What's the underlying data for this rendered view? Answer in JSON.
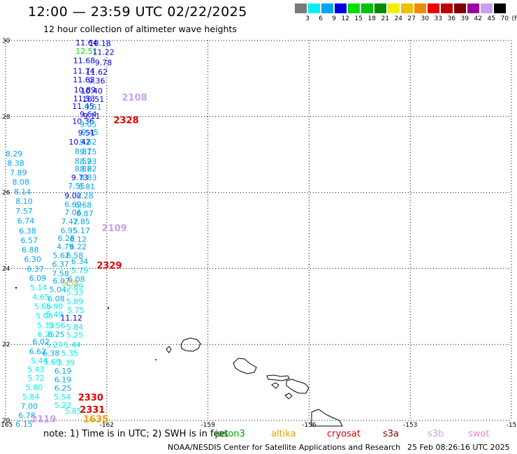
{
  "title": "12:00 — 23:59 UTC 02/22/2025",
  "subtitle": "12 hour collection of altimeter wave heights",
  "legend": {
    "unit": "(ft)",
    "bins": [
      {
        "label": "3",
        "color": "#7a7a7a"
      },
      {
        "label": "6",
        "color": "#00f0f0"
      },
      {
        "label": "9",
        "color": "#00a8f0"
      },
      {
        "label": "12",
        "color": "#0000e6"
      },
      {
        "label": "15",
        "color": "#00e000"
      },
      {
        "label": "18",
        "color": "#00c000"
      },
      {
        "label": "21",
        "color": "#008c00"
      },
      {
        "label": "24",
        "color": "#f0f000"
      },
      {
        "label": "27",
        "color": "#f0c000"
      },
      {
        "label": "30",
        "color": "#f08c00"
      },
      {
        "label": "33",
        "color": "#f00000"
      },
      {
        "label": "36",
        "color": "#c00000"
      },
      {
        "label": "39",
        "color": "#800000"
      },
      {
        "label": "42",
        "color": "#a000a0"
      },
      {
        "label": "45",
        "color": "#c8a0f0"
      },
      {
        "label": "70",
        "color": "#000000"
      }
    ]
  },
  "axes": {
    "lat_labels": [
      "30",
      "28",
      "26",
      "24",
      "22",
      "20"
    ],
    "lon_labels": [
      "-165",
      "-162",
      "-159",
      "-156",
      "-153",
      "-15"
    ]
  },
  "passes": [
    {
      "label": "2108",
      "color": "#c8a0f0",
      "lon": -161.55,
      "lat": 28.42
    },
    {
      "label": "2328",
      "color": "#e00000",
      "lon": -161.8,
      "lat": 27.82
    },
    {
      "label": "2109",
      "color": "#c8a0f0",
      "lon": -162.15,
      "lat": 24.98
    },
    {
      "label": "2329",
      "color": "#e00000",
      "lon": -162.3,
      "lat": 24.0
    },
    {
      "label": "2330",
      "color": "#e00000",
      "lon": -162.85,
      "lat": 20.52
    },
    {
      "label": "2331",
      "color": "#e00000",
      "lon": -162.8,
      "lat": 20.2
    },
    {
      "label": "1635",
      "color": "#f0a000",
      "lon": -162.7,
      "lat": 19.95
    },
    {
      "label": "2119",
      "color": "#c8a0f0",
      "lon": -164.25,
      "lat": 19.95
    }
  ],
  "wave_heights": [
    {
      "v": "11.64",
      "c": "#0000e6",
      "lon": -162.6,
      "lat": 29.87
    },
    {
      "v": "10.18",
      "c": "#0000e6",
      "lon": -162.2,
      "lat": 29.85
    },
    {
      "v": "12.51",
      "c": "#00e000",
      "lon": -162.6,
      "lat": 29.65
    },
    {
      "v": "11.22",
      "c": "#0000e6",
      "lon": -162.1,
      "lat": 29.62
    },
    {
      "v": "11.68",
      "c": "#0000e6",
      "lon": -162.67,
      "lat": 29.4
    },
    {
      "v": "9.78",
      "c": "#0000e6",
      "lon": -162.1,
      "lat": 29.35
    },
    {
      "v": "11.74",
      "c": "#0000e6",
      "lon": -162.68,
      "lat": 29.13
    },
    {
      "v": "11.62",
      "c": "#0000e6",
      "lon": -162.3,
      "lat": 29.1
    },
    {
      "v": "11.63",
      "c": "#0000e6",
      "lon": -162.68,
      "lat": 28.9
    },
    {
      "v": "9.36",
      "c": "#0000e6",
      "lon": -162.3,
      "lat": 28.87
    },
    {
      "v": "10.89",
      "c": "#0000e6",
      "lon": -162.65,
      "lat": 28.63
    },
    {
      "v": "10.40",
      "c": "#0000e6",
      "lon": -162.45,
      "lat": 28.6
    },
    {
      "v": "11.53",
      "c": "#0000e6",
      "lon": -162.67,
      "lat": 28.4
    },
    {
      "v": "10.51",
      "c": "#0000e6",
      "lon": -162.4,
      "lat": 28.38
    },
    {
      "v": "11.45",
      "c": "#0000e6",
      "lon": -162.7,
      "lat": 28.2
    },
    {
      "v": "9.51",
      "c": "#00a8f0",
      "lon": -162.4,
      "lat": 28.18
    },
    {
      "v": "9.64",
      "c": "#0000e6",
      "lon": -162.55,
      "lat": 27.99
    },
    {
      "v": "9.11",
      "c": "#0000e6",
      "lon": -162.45,
      "lat": 27.94
    },
    {
      "v": "10.36",
      "c": "#0000e6",
      "lon": -162.7,
      "lat": 27.8
    },
    {
      "v": "9.05",
      "c": "#00a8f0",
      "lon": -162.55,
      "lat": 27.72
    },
    {
      "v": "9.45",
      "c": "#00a8f0",
      "lon": -162.5,
      "lat": 27.52
    },
    {
      "v": "9.51",
      "c": "#0000e6",
      "lon": -162.6,
      "lat": 27.5
    },
    {
      "v": "10.42",
      "c": "#0000e6",
      "lon": -162.8,
      "lat": 27.26
    },
    {
      "v": "9.62",
      "c": "#00a8f0",
      "lon": -162.55,
      "lat": 27.26
    },
    {
      "v": "8.87",
      "c": "#00a8f0",
      "lon": -162.7,
      "lat": 27.01
    },
    {
      "v": "9.15",
      "c": "#00a8f0",
      "lon": -162.55,
      "lat": 27.0
    },
    {
      "v": "8.52",
      "c": "#00a8f0",
      "lon": -162.7,
      "lat": 26.76
    },
    {
      "v": "8.93",
      "c": "#00a8f0",
      "lon": -162.55,
      "lat": 26.75
    },
    {
      "v": "8.82",
      "c": "#00a8f0",
      "lon": -162.7,
      "lat": 26.55
    },
    {
      "v": "8.62",
      "c": "#00a8f0",
      "lon": -162.55,
      "lat": 26.55
    },
    {
      "v": "9.73",
      "c": "#0000e6",
      "lon": -162.8,
      "lat": 26.32
    },
    {
      "v": "8.83",
      "c": "#00a8f0",
      "lon": -162.55,
      "lat": 26.32
    },
    {
      "v": "7.55",
      "c": "#00a8f0",
      "lon": -162.9,
      "lat": 26.1
    },
    {
      "v": "8.81",
      "c": "#00a8f0",
      "lon": -162.6,
      "lat": 26.08
    },
    {
      "v": "9.02",
      "c": "#0000e6",
      "lon": -163.0,
      "lat": 25.85
    },
    {
      "v": "6.28",
      "c": "#00a8f0",
      "lon": -162.65,
      "lat": 25.85
    },
    {
      "v": "6.69",
      "c": "#00a8f0",
      "lon": -163.0,
      "lat": 25.62
    },
    {
      "v": "6.68",
      "c": "#00a8f0",
      "lon": -162.7,
      "lat": 25.6
    },
    {
      "v": "7.06",
      "c": "#00a8f0",
      "lon": -163.0,
      "lat": 25.4
    },
    {
      "v": "6.87",
      "c": "#00a8f0",
      "lon": -162.65,
      "lat": 25.38
    },
    {
      "v": "7.42",
      "c": "#00a8f0",
      "lon": -163.1,
      "lat": 25.17
    },
    {
      "v": "7.85",
      "c": "#00a8f0",
      "lon": -162.75,
      "lat": 25.17
    },
    {
      "v": "6.95",
      "c": "#00a8f0",
      "lon": -163.12,
      "lat": 24.93
    },
    {
      "v": "5.17",
      "c": "#00a8f0",
      "lon": -162.75,
      "lat": 24.93
    },
    {
      "v": "6.28",
      "c": "#00a8f0",
      "lon": -163.2,
      "lat": 24.72
    },
    {
      "v": "6.12",
      "c": "#00a8f0",
      "lon": -162.85,
      "lat": 24.7
    },
    {
      "v": "4.79",
      "c": "#00a8f0",
      "lon": -163.23,
      "lat": 24.5
    },
    {
      "v": "6.22",
      "c": "#00a8f0",
      "lon": -162.85,
      "lat": 24.5
    },
    {
      "v": "5.62",
      "c": "#00a8f0",
      "lon": -163.35,
      "lat": 24.27
    },
    {
      "v": "6.58",
      "c": "#00a8f0",
      "lon": -162.95,
      "lat": 24.27
    },
    {
      "v": "6.34",
      "c": "#00a8f0",
      "lon": -162.8,
      "lat": 24.12
    },
    {
      "v": "6.37",
      "c": "#00a8f0",
      "lon": -163.37,
      "lat": 24.04
    },
    {
      "v": "5.79",
      "c": "#00f0f0",
      "lon": -162.8,
      "lat": 23.88
    },
    {
      "v": "7.58",
      "c": "#00a8f0",
      "lon": -163.37,
      "lat": 23.8
    },
    {
      "v": "6.08",
      "c": "#00a8f0",
      "lon": -162.9,
      "lat": 23.65
    },
    {
      "v": "6.07",
      "c": "#00a8f0",
      "lon": -163.35,
      "lat": 23.6
    },
    {
      "v": "5.55",
      "c": "#f0a000",
      "lon": -163.08,
      "lat": 23.55
    },
    {
      "v": "5.89",
      "c": "#00f0f0",
      "lon": -162.95,
      "lat": 23.46
    },
    {
      "v": "5.04",
      "c": "#00a8f0",
      "lon": -163.45,
      "lat": 23.37
    },
    {
      "v": "5.33",
      "c": "#00f0f0",
      "lon": -162.95,
      "lat": 23.3
    },
    {
      "v": "6.08",
      "c": "#00a8f0",
      "lon": -163.5,
      "lat": 23.13
    },
    {
      "v": "5.89",
      "c": "#00f0f0",
      "lon": -162.95,
      "lat": 23.06
    },
    {
      "v": "5.90",
      "c": "#00f0f0",
      "lon": -163.55,
      "lat": 22.93
    },
    {
      "v": "5.75",
      "c": "#00f0f0",
      "lon": -162.92,
      "lat": 22.83
    },
    {
      "v": "5.49",
      "c": "#00f0f0",
      "lon": -163.55,
      "lat": 22.72
    },
    {
      "v": "11.12",
      "c": "#0000e6",
      "lon": -163.05,
      "lat": 22.63
    },
    {
      "v": "5.56",
      "c": "#00f0f0",
      "lon": -163.48,
      "lat": 22.43
    },
    {
      "v": "5.84",
      "c": "#00f0f0",
      "lon": -162.95,
      "lat": 22.39
    },
    {
      "v": "6.25",
      "c": "#00a8f0",
      "lon": -163.5,
      "lat": 22.2
    },
    {
      "v": "5.25",
      "c": "#00f0f0",
      "lon": -162.95,
      "lat": 22.18
    },
    {
      "v": "5.29",
      "c": "#00f0f0",
      "lon": -163.55,
      "lat": 21.92
    },
    {
      "v": "5.44",
      "c": "#00f0f0",
      "lon": -163.02,
      "lat": 21.92
    },
    {
      "v": "6.38",
      "c": "#00a8f0",
      "lon": -163.65,
      "lat": 21.7
    },
    {
      "v": "5.35",
      "c": "#00f0f0",
      "lon": -163.1,
      "lat": 21.7
    },
    {
      "v": "5.60",
      "c": "#00f0f0",
      "lon": -163.62,
      "lat": 21.47
    },
    {
      "v": "5.39",
      "c": "#00f0f0",
      "lon": -163.2,
      "lat": 21.45
    },
    {
      "v": "6.19",
      "c": "#00a8f0",
      "lon": -163.3,
      "lat": 21.23
    },
    {
      "v": "6.19",
      "c": "#00a8f0",
      "lon": -163.3,
      "lat": 21.0
    },
    {
      "v": "6.25",
      "c": "#00a8f0",
      "lon": -163.3,
      "lat": 20.78
    },
    {
      "v": "5.54",
      "c": "#00f0f0",
      "lon": -163.32,
      "lat": 20.55
    },
    {
      "v": "5.22",
      "c": "#00f0f0",
      "lon": -163.3,
      "lat": 20.33
    },
    {
      "v": "5.85",
      "c": "#00f0f0",
      "lon": -163.0,
      "lat": 20.18
    },
    {
      "v": "8.29",
      "c": "#00a8f0",
      "lon": -164.75,
      "lat": 26.95
    },
    {
      "v": "8.38",
      "c": "#00a8f0",
      "lon": -164.7,
      "lat": 26.7
    },
    {
      "v": "7.89",
      "c": "#00a8f0",
      "lon": -164.62,
      "lat": 26.45
    },
    {
      "v": "8.08",
      "c": "#00a8f0",
      "lon": -164.55,
      "lat": 26.2
    },
    {
      "v": "8.14",
      "c": "#00a8f0",
      "lon": -164.5,
      "lat": 25.95
    },
    {
      "v": "8.10",
      "c": "#00a8f0",
      "lon": -164.45,
      "lat": 25.7
    },
    {
      "v": "7.57",
      "c": "#00a8f0",
      "lon": -164.45,
      "lat": 25.44
    },
    {
      "v": "6.74",
      "c": "#00a8f0",
      "lon": -164.4,
      "lat": 25.18
    },
    {
      "v": "6.38",
      "c": "#00a8f0",
      "lon": -164.35,
      "lat": 24.92
    },
    {
      "v": "6.57",
      "c": "#00a8f0",
      "lon": -164.3,
      "lat": 24.67
    },
    {
      "v": "6.88",
      "c": "#00a8f0",
      "lon": -164.27,
      "lat": 24.42
    },
    {
      "v": "6.30",
      "c": "#00a8f0",
      "lon": -164.2,
      "lat": 24.17
    },
    {
      "v": "6.37",
      "c": "#00a8f0",
      "lon": -164.12,
      "lat": 23.92
    },
    {
      "v": "6.09",
      "c": "#00a8f0",
      "lon": -164.05,
      "lat": 23.68
    },
    {
      "v": "5.14",
      "c": "#00f0f0",
      "lon": -164.02,
      "lat": 23.43
    },
    {
      "v": "4.65",
      "c": "#00f0f0",
      "lon": -163.95,
      "lat": 23.18
    },
    {
      "v": "5.66",
      "c": "#00f0f0",
      "lon": -163.9,
      "lat": 22.93
    },
    {
      "v": "5.08",
      "c": "#00f0f0",
      "lon": -163.85,
      "lat": 22.68
    },
    {
      "v": "5.33",
      "c": "#00f0f0",
      "lon": -163.82,
      "lat": 22.44
    },
    {
      "v": "6.25",
      "c": "#00f0f0",
      "lon": -163.8,
      "lat": 22.2
    },
    {
      "v": "6.02",
      "c": "#00a8f0",
      "lon": -163.95,
      "lat": 22.0
    },
    {
      "v": "6.62",
      "c": "#00a8f0",
      "lon": -164.05,
      "lat": 21.75
    },
    {
      "v": "5.44",
      "c": "#00f0f0",
      "lon": -164.0,
      "lat": 21.5
    },
    {
      "v": "5.43",
      "c": "#00f0f0",
      "lon": -164.1,
      "lat": 21.28
    },
    {
      "v": "5.72",
      "c": "#00f0f0",
      "lon": -164.1,
      "lat": 21.05
    },
    {
      "v": "5.80",
      "c": "#00f0f0",
      "lon": -164.15,
      "lat": 20.8
    },
    {
      "v": "5.84",
      "c": "#00f0f0",
      "lon": -164.25,
      "lat": 20.55
    },
    {
      "v": "7.00",
      "c": "#00a8f0",
      "lon": -164.3,
      "lat": 20.3
    },
    {
      "v": "6.78",
      "c": "#00a8f0",
      "lon": -164.37,
      "lat": 20.06
    },
    {
      "v": "6.15",
      "c": "#00a8f0",
      "lon": -164.45,
      "lat": 19.83
    }
  ],
  "footer": {
    "note": "note:  1) Time is in UTC; 2) SWH is in feet",
    "satellites": [
      {
        "label": "jason3",
        "color": "#00a000"
      },
      {
        "label": "altika",
        "color": "#f0a000"
      },
      {
        "label": "cryosat",
        "color": "#e00000"
      },
      {
        "label": "s3a",
        "color": "#800000"
      },
      {
        "label": "s3b",
        "color": "#c8a0f0"
      },
      {
        "label": "swot",
        "color": "#f080d0"
      }
    ],
    "credit": "NOAA/NESDIS Center for Satellite Applications and Research",
    "timestamp": "25 Feb 08:26:16 UTC 2025"
  }
}
